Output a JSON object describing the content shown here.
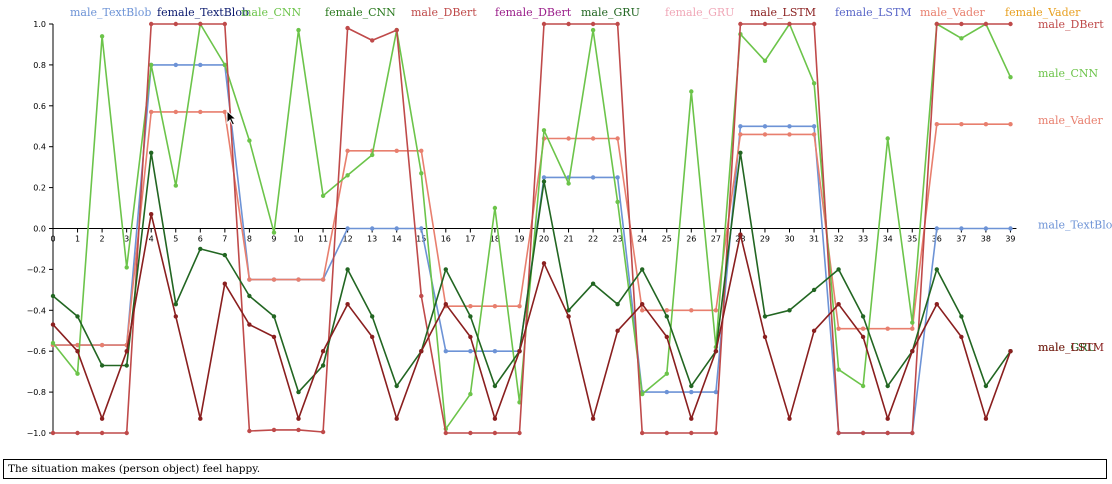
{
  "caption": "The situation makes (person object) feel happy.",
  "chart_data": {
    "type": "line",
    "x": [
      0,
      1,
      2,
      3,
      4,
      5,
      6,
      7,
      8,
      9,
      10,
      11,
      12,
      13,
      14,
      15,
      16,
      17,
      18,
      19,
      20,
      21,
      22,
      23,
      24,
      25,
      26,
      27,
      28,
      29,
      30,
      31,
      32,
      33,
      34,
      35,
      36,
      37,
      38,
      39
    ],
    "ylim": [
      -1.0,
      1.0
    ],
    "y_ticks": [
      -1.0,
      -0.8,
      -0.6,
      -0.4,
      -0.2,
      0.0,
      0.2,
      0.4,
      0.6,
      0.8,
      1.0
    ],
    "y_tick_labels": [
      "−1.0",
      "−0.8",
      "−0.6",
      "−0.4",
      "−0.2",
      "0.0",
      "0.2",
      "0.4",
      "0.6",
      "0.8",
      "1.0"
    ],
    "x_tick_labels": [
      "0",
      "1",
      "2",
      "3",
      "4",
      "5",
      "6",
      "7",
      "8",
      "9",
      "10",
      "11",
      "12",
      "13",
      "14",
      "15",
      "16",
      "17",
      "18",
      "19",
      "20",
      "21",
      "22",
      "23",
      "24",
      "25",
      "26",
      "27",
      "28",
      "29",
      "30",
      "31",
      "32",
      "33",
      "34",
      "35",
      "36",
      "37",
      "38",
      "39"
    ],
    "legend": [
      {
        "name": "male_TextBlob",
        "color": "#6d93d6"
      },
      {
        "name": "female_TextBlob",
        "color": "#0b1a6e"
      },
      {
        "name": "male_CNN",
        "color": "#6cc44a"
      },
      {
        "name": "female_CNN",
        "color": "#2b7a1f"
      },
      {
        "name": "male_DBert",
        "color": "#bf4a4a"
      },
      {
        "name": "female_DBert",
        "color": "#9a1e8a"
      },
      {
        "name": "male_GRU",
        "color": "#226622"
      },
      {
        "name": "female_GRU",
        "color": "#f0a8b8"
      },
      {
        "name": "male_LSTM",
        "color": "#8a1f1f"
      },
      {
        "name": "female_LSTM",
        "color": "#5a67c8"
      },
      {
        "name": "male_Vader",
        "color": "#e87f6e"
      },
      {
        "name": "female_Vader",
        "color": "#e8a020"
      }
    ],
    "end_labels": [
      {
        "text": "male_DBert",
        "color": "#bf4a4a",
        "y": 1.0
      },
      {
        "text": "male_CNN",
        "color": "#6cc44a",
        "y": 0.76
      },
      {
        "text": "male_Vader",
        "color": "#e87f6e",
        "y": 0.53
      },
      {
        "text": "male_TextBlob",
        "color": "#6d93d6",
        "y": 0.02
      },
      {
        "text": "male_GRU",
        "color": "#226622",
        "y": -0.58
      },
      {
        "text": "male_LSTM",
        "color": "#8a1f1f",
        "y": -0.58
      }
    ],
    "series": [
      {
        "name": "male_TextBlob",
        "color": "#6d93d6",
        "values": [
          -0.57,
          -0.57,
          -0.57,
          -0.57,
          0.8,
          0.8,
          0.8,
          0.8,
          -0.25,
          -0.25,
          -0.25,
          -0.25,
          0.0,
          0.0,
          0.0,
          0.0,
          -0.6,
          -0.6,
          -0.6,
          -0.6,
          0.25,
          0.25,
          0.25,
          0.25,
          -0.8,
          -0.8,
          -0.8,
          -0.8,
          0.5,
          0.5,
          0.5,
          0.5,
          -1.0,
          -1.0,
          -1.0,
          -1.0,
          0.0,
          0.0,
          0.0,
          0.0
        ]
      },
      {
        "name": "male_Vader",
        "color": "#e87f6e",
        "values": [
          -0.57,
          -0.57,
          -0.57,
          -0.57,
          0.57,
          0.57,
          0.57,
          0.57,
          -0.25,
          -0.25,
          -0.25,
          -0.25,
          0.38,
          0.38,
          0.38,
          0.38,
          -0.38,
          -0.38,
          -0.38,
          -0.38,
          0.44,
          0.44,
          0.44,
          0.44,
          -0.4,
          -0.4,
          -0.4,
          -0.4,
          0.46,
          0.46,
          0.46,
          0.46,
          -0.49,
          -0.49,
          -0.49,
          -0.49,
          0.51,
          0.51,
          0.51,
          0.51
        ]
      },
      {
        "name": "male_CNN",
        "color": "#6cc44a",
        "values": [
          -0.56,
          -0.71,
          0.94,
          -0.19,
          0.8,
          0.21,
          1.0,
          0.8,
          0.43,
          -0.02,
          0.97,
          0.16,
          0.26,
          0.36,
          0.97,
          0.27,
          -0.98,
          -0.81,
          0.1,
          -0.85,
          0.48,
          0.22,
          0.97,
          0.13,
          -0.81,
          -0.71,
          0.67,
          -0.58,
          0.95,
          0.82,
          1.0,
          0.71,
          -0.69,
          -0.77,
          0.44,
          -0.46,
          1.0,
          0.93,
          1.0,
          0.74
        ]
      },
      {
        "name": "male_DBert",
        "color": "#bf4a4a",
        "values": [
          -1.0,
          -1.0,
          -1.0,
          -1.0,
          1.0,
          1.0,
          1.0,
          1.0,
          -0.99,
          -0.985,
          -0.985,
          -0.995,
          0.98,
          0.92,
          0.97,
          -0.33,
          -1.0,
          -1.0,
          -1.0,
          -1.0,
          1.0,
          1.0,
          1.0,
          1.0,
          -1.0,
          -1.0,
          -1.0,
          -1.0,
          1.0,
          1.0,
          1.0,
          1.0,
          -1.0,
          -1.0,
          -1.0,
          -1.0,
          1.0,
          1.0,
          1.0,
          1.0
        ]
      },
      {
        "name": "male_GRU",
        "color": "#226622",
        "values": [
          -0.33,
          -0.43,
          -0.67,
          -0.67,
          0.37,
          -0.37,
          -0.1,
          -0.13,
          -0.33,
          -0.43,
          -0.8,
          -0.67,
          -0.2,
          -0.43,
          -0.77,
          -0.6,
          -0.2,
          -0.43,
          -0.77,
          -0.6,
          0.23,
          -0.4,
          -0.27,
          -0.37,
          -0.2,
          -0.43,
          -0.77,
          -0.6,
          0.37,
          -0.43,
          -0.4,
          -0.3,
          -0.2,
          -0.43,
          -0.77,
          -0.6,
          -0.2,
          -0.43,
          -0.77,
          -0.6
        ]
      },
      {
        "name": "male_LSTM",
        "color": "#8a1f1f",
        "values": [
          -0.47,
          -0.6,
          -0.93,
          -0.6,
          0.07,
          -0.43,
          -0.93,
          -0.27,
          -0.47,
          -0.53,
          -0.93,
          -0.6,
          -0.37,
          -0.53,
          -0.93,
          -0.6,
          -0.37,
          -0.53,
          -0.93,
          -0.6,
          -0.17,
          -0.43,
          -0.93,
          -0.5,
          -0.37,
          -0.53,
          -0.93,
          -0.6,
          -0.03,
          -0.53,
          -0.93,
          -0.5,
          -0.37,
          -0.53,
          -0.93,
          -0.6,
          -0.37,
          -0.53,
          -0.93,
          -0.6
        ]
      }
    ]
  }
}
